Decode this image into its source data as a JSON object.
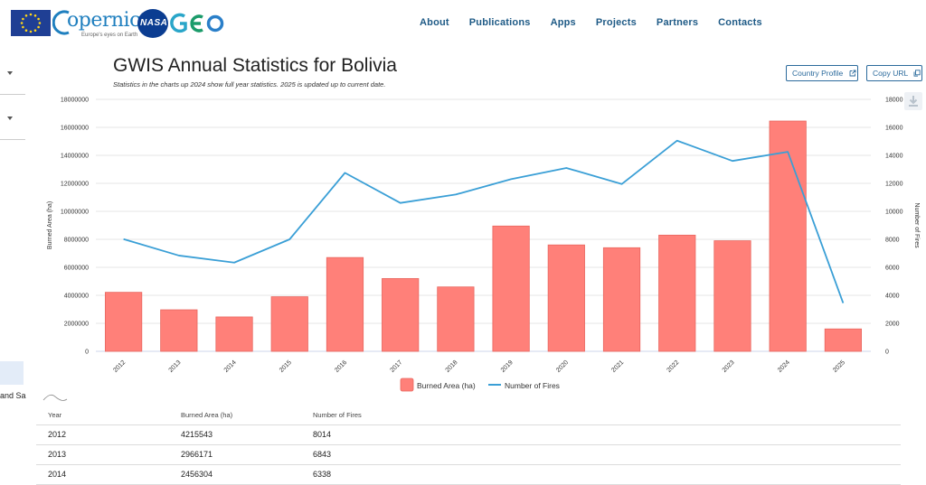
{
  "header": {
    "copernicus_text": "opernicus",
    "copernicus_tagline": "Europe's eyes on Earth",
    "nasa_text": "NASA",
    "geo_text": "GEO",
    "nav": [
      "About",
      "Publications",
      "Apps",
      "Projects",
      "Partners",
      "Contacts"
    ]
  },
  "sidebar": {
    "cut_label": "and Sa"
  },
  "page": {
    "title": "GWIS Annual Statistics for Bolivia",
    "subtitle": "Statistics in the charts up 2024 show full year statistics. 2025 is updated up to current date.",
    "country_profile_button": "Country Profile",
    "copy_url_button": "Copy URL"
  },
  "chart_data": {
    "type": "bar+line",
    "categories": [
      "2012",
      "2013",
      "2014",
      "2015",
      "2016",
      "2017",
      "2018",
      "2019",
      "2020",
      "2021",
      "2022",
      "2023",
      "2024",
      "2025"
    ],
    "series": [
      {
        "name": "Burned Area (ha)",
        "type": "bar",
        "axis": "left",
        "color": "#ff8079",
        "values": [
          4215543,
          2966171,
          2456304,
          3900000,
          6700000,
          5200000,
          4600000,
          8950000,
          7600000,
          7400000,
          8300000,
          7900000,
          16450000,
          1600000
        ]
      },
      {
        "name": "Number of Fires",
        "type": "line",
        "axis": "right",
        "color": "#3a9fd6",
        "values": [
          8014,
          6843,
          6338,
          8000,
          12750,
          10600,
          11200,
          12300,
          13100,
          11950,
          15050,
          13600,
          14250,
          3450
        ]
      }
    ],
    "ylabel_left": "Burned Area (ha)",
    "ylabel_right": "Number of Fires",
    "ylim_left": [
      0,
      18000000
    ],
    "ylim_right": [
      0,
      18000
    ],
    "yticks_left": [
      "0",
      "2000000",
      "4000000",
      "6000000",
      "8000000",
      "10000000",
      "12000000",
      "14000000",
      "16000000",
      "18000000"
    ],
    "yticks_right": [
      "0",
      "2000",
      "4000",
      "6000",
      "8000",
      "10000",
      "12000",
      "14000",
      "16000",
      "18000"
    ],
    "legend_position": "bottom-center"
  },
  "table": {
    "headers": [
      "Year",
      "Burned Area (ha)",
      "Number of Fires"
    ],
    "rows": [
      [
        "2012",
        "4215543",
        "8014"
      ],
      [
        "2013",
        "2966171",
        "6843"
      ],
      [
        "2014",
        "2456304",
        "6338"
      ]
    ]
  }
}
